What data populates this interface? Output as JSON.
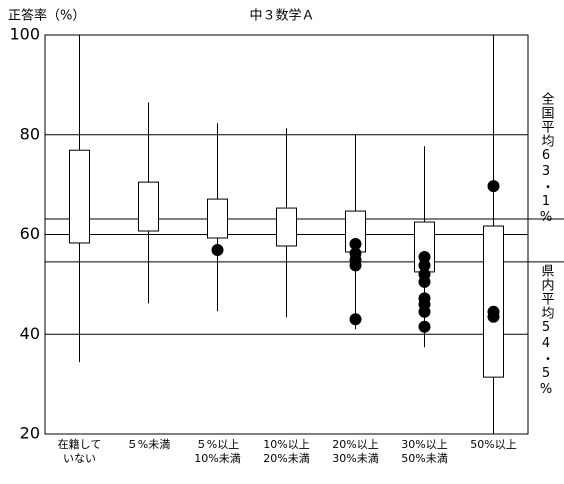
{
  "chart_data": {
    "type": "box",
    "title": "中３数学Ａ",
    "y_label": "正答率（%）",
    "categories": [
      [
        "在籍して",
        "いない"
      ],
      [
        "５%未満"
      ],
      [
        "５%以上",
        "10%未満"
      ],
      [
        "10%以上",
        "20%未満"
      ],
      [
        "20%以上",
        "30%未満"
      ],
      [
        "30%以上",
        "50%未満"
      ],
      [
        "50%以上"
      ]
    ],
    "boxes": [
      {
        "min": 34.4,
        "q1": 58.3,
        "q3": 76.9,
        "max": 100,
        "outliers": []
      },
      {
        "min": 46.2,
        "q1": 60.7,
        "q3": 70.5,
        "max": 86.5,
        "outliers": []
      },
      {
        "min": 44.6,
        "q1": 59.3,
        "q3": 67.1,
        "max": 82.3,
        "outliers": [
          56.9
        ]
      },
      {
        "min": 43.4,
        "q1": 57.7,
        "q3": 65.3,
        "max": 81.3,
        "outliers": []
      },
      {
        "min": 41.0,
        "q1": 56.5,
        "q3": 64.7,
        "max": 80.1,
        "outliers": [
          58.1,
          56.2,
          54.9,
          53.8,
          43.0
        ]
      },
      {
        "min": 37.4,
        "q1": 52.5,
        "q3": 62.5,
        "max": 77.7,
        "outliers": [
          55.5,
          53.8,
          52.0,
          50.5,
          47.2,
          46.0,
          44.5,
          41.5
        ]
      },
      {
        "min": 20,
        "q1": 31.4,
        "q3": 61.7,
        "max": 100,
        "outliers": [
          69.7,
          44.5,
          43.5
        ]
      }
    ],
    "reference_lines": [
      {
        "value": 63.1,
        "label": "全国平均63・1%"
      },
      {
        "value": 54.5,
        "label": "県内平均54・5%"
      }
    ],
    "color": "#000000",
    "ylim": [
      20,
      100
    ],
    "yticks": [
      20,
      40,
      60,
      80,
      100
    ],
    "grid": true
  }
}
